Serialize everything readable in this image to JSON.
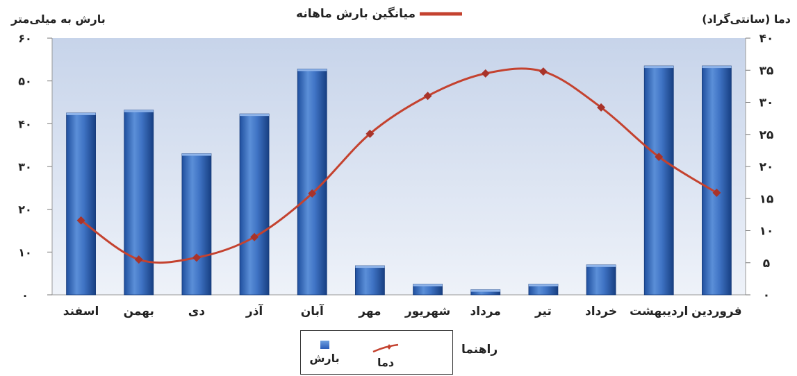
{
  "chart_data": {
    "type": "bar",
    "title": "میانگین بارش ماهانه",
    "left_axis_label": "بارش به میلی‌متر",
    "right_axis_label": "دما (سانتی‌گراد)",
    "categories": [
      "فروردین",
      "اردیبهشت",
      "خرداد",
      "تیر",
      "مرداد",
      "شهریور",
      "مهر",
      "آبان",
      "آذر",
      "دی",
      "بهمن",
      "اسفند"
    ],
    "series": [
      {
        "name": "بارش",
        "type": "bar",
        "axis": "left",
        "values": [
          53.5,
          53.5,
          7,
          2.5,
          1.2,
          2.5,
          6.8,
          52.8,
          42.3,
          33,
          43.2,
          42.5
        ]
      },
      {
        "name": "دما",
        "type": "line",
        "axis": "right",
        "values": [
          15.9,
          21.5,
          29.2,
          34.8,
          34.5,
          31,
          25.1,
          15.8,
          9,
          5.8,
          5.5,
          11.6
        ]
      }
    ],
    "left_axis": {
      "min": 0,
      "max": 60,
      "step": 10,
      "tick_labels": [
        "۰",
        "۱۰",
        "۲۰",
        "۳۰",
        "۴۰",
        "۵۰",
        "۶۰"
      ]
    },
    "right_axis": {
      "min": 0,
      "max": 40,
      "step": 5,
      "tick_labels": [
        "۰",
        "۵",
        "۱۰",
        "۱۵",
        "۲۰",
        "۲۵",
        "۳۰",
        "۳۵",
        "۴۰"
      ]
    },
    "legend": {
      "title": "راهنما",
      "items": [
        "دما",
        "بارش"
      ]
    },
    "colors": {
      "bar_light": "#6fa0e0",
      "bar_dark": "#1f4f9e",
      "line": "#c4422f",
      "plot_top": "#c7d4ea",
      "plot_bottom": "#eaeff8"
    },
    "grid": false
  }
}
